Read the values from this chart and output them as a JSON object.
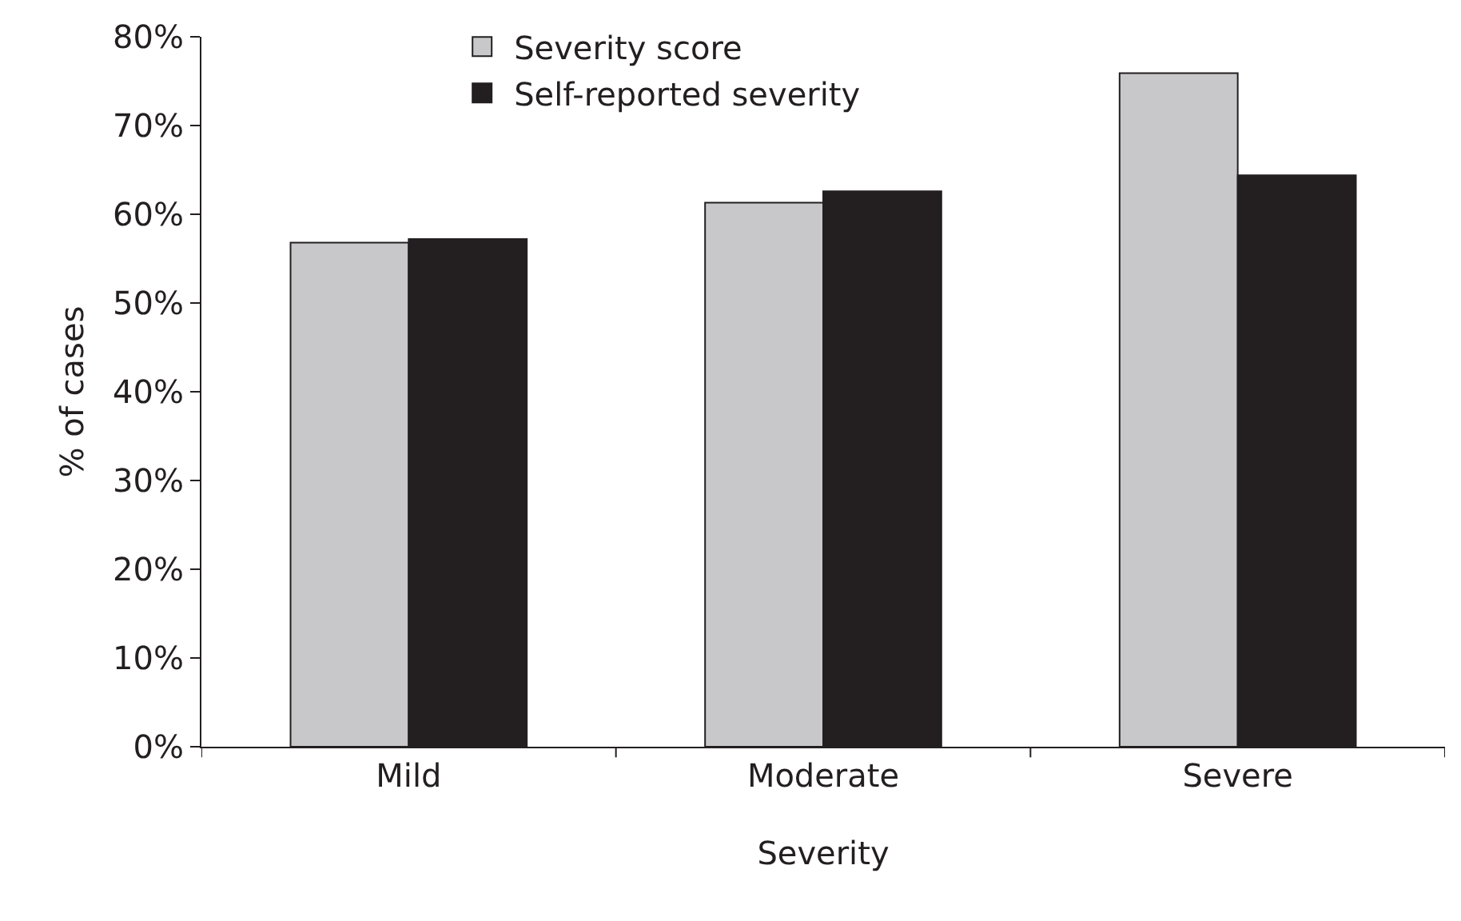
{
  "chart_data": {
    "type": "bar",
    "xlabel": "Severity",
    "ylabel": "% of cases",
    "categories": [
      "Mild",
      "Moderate",
      "Severe"
    ],
    "series": [
      {
        "name": "Severity score",
        "color": "#c8c8ca",
        "values": [
          56.8,
          61.3,
          75.9
        ]
      },
      {
        "name": "Self-reported severity",
        "color": "#231f20",
        "values": [
          57.2,
          62.6,
          64.4
        ]
      }
    ],
    "ylim": [
      0,
      80
    ],
    "yticks": [
      {
        "value": 0,
        "label": "0%"
      },
      {
        "value": 10,
        "label": "10%"
      },
      {
        "value": 20,
        "label": "20%"
      },
      {
        "value": 30,
        "label": "30%"
      },
      {
        "value": 40,
        "label": "40%"
      },
      {
        "value": 50,
        "label": "50%"
      },
      {
        "value": 60,
        "label": "60%"
      },
      {
        "value": 70,
        "label": "70%"
      },
      {
        "value": 80,
        "label": "80%"
      }
    ],
    "grid": false,
    "legend": "top"
  }
}
